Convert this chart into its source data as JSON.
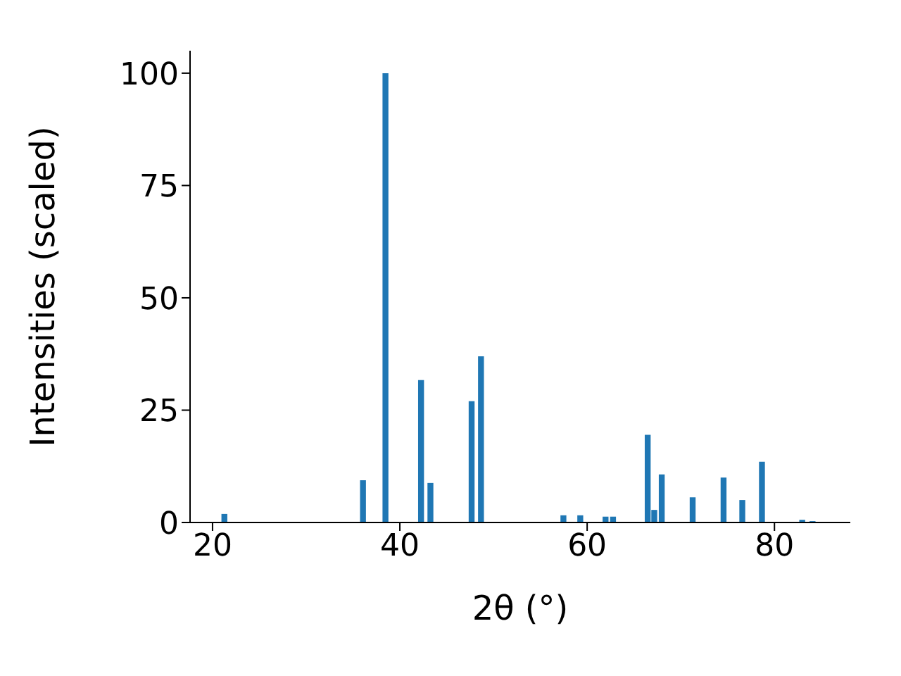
{
  "chart_data": {
    "type": "bar",
    "xlabel": "2θ (°)",
    "ylabel": "Intensities (scaled)",
    "x": [
      21.3,
      36.1,
      38.5,
      42.3,
      43.3,
      47.7,
      48.7,
      57.5,
      59.3,
      62.0,
      62.8,
      66.5,
      67.2,
      68.0,
      71.3,
      74.6,
      76.6,
      78.7,
      83.0,
      84.1
    ],
    "values": [
      1.9,
      9.4,
      100,
      31.7,
      8.8,
      27.0,
      37.0,
      1.6,
      1.6,
      1.3,
      1.3,
      19.5,
      2.8,
      10.7,
      5.6,
      10.0,
      5.0,
      13.5,
      0.6,
      0.3
    ],
    "color": "#1f77b4",
    "xlim": [
      17.6,
      88.1
    ],
    "xticks": [
      20,
      40,
      60,
      80
    ],
    "ylim": [
      0,
      105
    ],
    "yticks": [
      0,
      25,
      50,
      75,
      100
    ],
    "grid": false
  }
}
